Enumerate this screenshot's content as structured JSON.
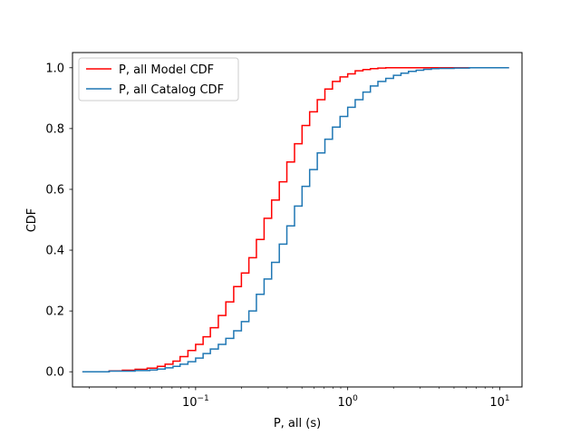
{
  "chart_data": {
    "type": "line",
    "title": "",
    "xlabel": "P, all (s)",
    "ylabel": "CDF",
    "xscale": "log",
    "xlim": [
      0.0155,
      14.0
    ],
    "ylim": [
      -0.05,
      1.05
    ],
    "x_ticks": [
      {
        "value": 0.1,
        "base": "10",
        "exp": "−1"
      },
      {
        "value": 1,
        "base": "10",
        "exp": "0"
      },
      {
        "value": 10,
        "base": "10",
        "exp": "1"
      }
    ],
    "y_ticks": [
      "0.0",
      "0.2",
      "0.4",
      "0.6",
      "0.8",
      "1.0"
    ],
    "grid": false,
    "legend_position": "top-left",
    "series": [
      {
        "name": "P, all Model CDF",
        "color": "#ff0000",
        "x": [
          0.018,
          0.027,
          0.033,
          0.04,
          0.048,
          0.056,
          0.063,
          0.071,
          0.079,
          0.089,
          0.1,
          0.112,
          0.125,
          0.141,
          0.158,
          0.178,
          0.2,
          0.224,
          0.251,
          0.282,
          0.316,
          0.355,
          0.398,
          0.447,
          0.501,
          0.562,
          0.631,
          0.708,
          0.794,
          0.891,
          1.0,
          1.12,
          1.26,
          1.41,
          1.58,
          1.78,
          2.0,
          2.82,
          3.98,
          11.5
        ],
        "y": [
          0.0,
          0.003,
          0.005,
          0.008,
          0.012,
          0.018,
          0.025,
          0.035,
          0.05,
          0.07,
          0.09,
          0.115,
          0.145,
          0.185,
          0.23,
          0.28,
          0.325,
          0.375,
          0.435,
          0.505,
          0.565,
          0.625,
          0.69,
          0.75,
          0.81,
          0.855,
          0.895,
          0.93,
          0.955,
          0.97,
          0.98,
          0.99,
          0.994,
          0.997,
          0.999,
          1.0,
          1.0,
          1.0,
          1.0,
          1.0
        ]
      },
      {
        "name": "P, all Catalog CDF",
        "color": "#1f77b4",
        "x": [
          0.018,
          0.027,
          0.04,
          0.05,
          0.056,
          0.063,
          0.071,
          0.079,
          0.089,
          0.1,
          0.112,
          0.125,
          0.141,
          0.158,
          0.178,
          0.2,
          0.224,
          0.251,
          0.282,
          0.316,
          0.355,
          0.398,
          0.447,
          0.501,
          0.562,
          0.631,
          0.708,
          0.794,
          0.891,
          1.0,
          1.12,
          1.26,
          1.41,
          1.58,
          1.78,
          2.0,
          2.24,
          2.51,
          2.82,
          3.16,
          3.55,
          3.98,
          5.01,
          6.31,
          7.94,
          11.5
        ],
        "y": [
          0.0,
          0.002,
          0.004,
          0.006,
          0.009,
          0.013,
          0.018,
          0.025,
          0.033,
          0.045,
          0.06,
          0.075,
          0.09,
          0.11,
          0.135,
          0.165,
          0.2,
          0.255,
          0.305,
          0.36,
          0.42,
          0.48,
          0.545,
          0.61,
          0.665,
          0.72,
          0.765,
          0.805,
          0.84,
          0.87,
          0.895,
          0.92,
          0.94,
          0.955,
          0.965,
          0.975,
          0.982,
          0.988,
          0.992,
          0.995,
          0.997,
          0.998,
          0.999,
          1.0,
          1.0,
          1.0
        ]
      }
    ]
  }
}
